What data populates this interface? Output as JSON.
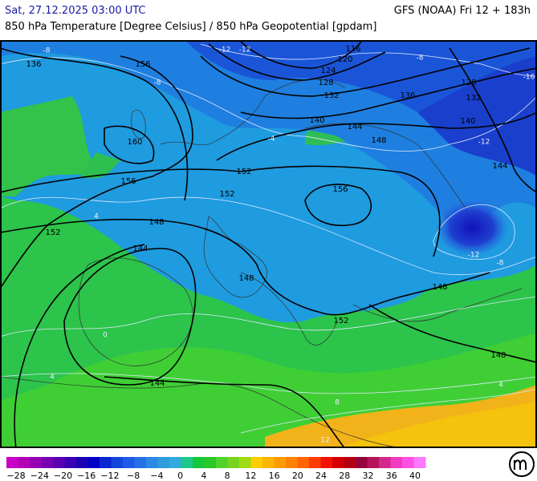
{
  "header": {
    "left": "Sat, 27.12.2025 03:00 UTC",
    "right": "GFS (NOAA) Fri 12 + 183h",
    "subtitle": "850 hPa Temperature [Degree Celsius] / 850 hPa Geopotential [gpdam]"
  },
  "contour_labels": [
    "136",
    "156",
    "160",
    "156",
    "152",
    "148",
    "144",
    "152",
    "152",
    "156",
    "148",
    "152",
    "144",
    "148",
    "148",
    "144",
    "140",
    "132",
    "128",
    "136",
    "144",
    "148",
    "140",
    "132",
    "128",
    "124",
    "120",
    "116"
  ],
  "isotherm_labels": [
    "-8",
    "-8",
    "-12",
    "-12",
    "-8",
    "-16",
    "-12",
    "-12",
    "-8",
    "4",
    "-4",
    "0",
    "4",
    "8",
    "12",
    "4"
  ],
  "scale": {
    "labels": [
      "−28",
      "−24",
      "−20",
      "−16",
      "−12",
      "−8",
      "−4",
      "0",
      "4",
      "8",
      "12",
      "16",
      "20",
      "24",
      "28",
      "32",
      "36",
      "40"
    ],
    "colors": [
      "#c800c8",
      "#b400b4",
      "#9600b4",
      "#7800b4",
      "#5a00b4",
      "#3c00b4",
      "#1e00b4",
      "#0000c8",
      "#0a28d2",
      "#1446dc",
      "#1e5ae6",
      "#2870e6",
      "#2d87e6",
      "#309bdc",
      "#32aadc",
      "#1ec88c",
      "#14c83c",
      "#28c828",
      "#50d228",
      "#78d21e",
      "#a0dc14",
      "#ffcd00",
      "#ffb400",
      "#ff9b00",
      "#ff8200",
      "#ff6400",
      "#ff3c00",
      "#f01400",
      "#d20000",
      "#b40014",
      "#96003c",
      "#b4145a",
      "#d2288c",
      "#f03cbe",
      "#ff50e6",
      "#ff78ff"
    ]
  }
}
